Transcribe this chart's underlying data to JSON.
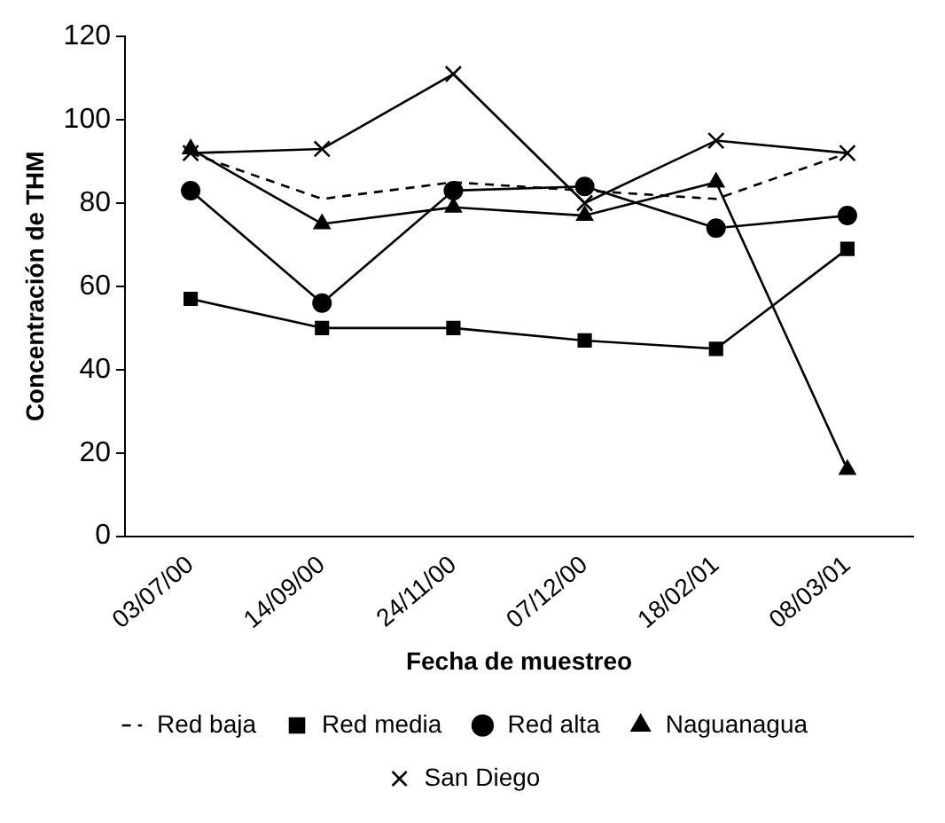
{
  "chart_data": {
    "type": "line",
    "xlabel": "Fecha de muestreo",
    "ylabel": "Concentración de THM",
    "categories": [
      "03/07/00",
      "14/09/00",
      "24/11/00",
      "07/12/00",
      "18/02/01",
      "08/03/01"
    ],
    "ylim": [
      0,
      120
    ],
    "yticks": [
      0,
      20,
      40,
      60,
      80,
      100,
      120
    ],
    "grid": false,
    "legend": "bottom",
    "series": [
      {
        "name": "Red baja",
        "color": "#000000",
        "line_style": "dashed",
        "marker": "none",
        "values": [
          92,
          81,
          85,
          83,
          81,
          92
        ]
      },
      {
        "name": "Red media",
        "color": "#000000",
        "line_style": "solid",
        "marker": "square",
        "values": [
          57,
          50,
          50,
          47,
          45,
          69
        ]
      },
      {
        "name": "Red alta",
        "color": "#000000",
        "line_style": "solid",
        "marker": "circle",
        "values": [
          83,
          56,
          83,
          84,
          74,
          77
        ]
      },
      {
        "name": "Naguanagua",
        "color": "#000000",
        "line_style": "solid",
        "marker": "triangle",
        "values": [
          93,
          75,
          79,
          77,
          85,
          16
        ]
      },
      {
        "name": "San Diego",
        "color": "#000000",
        "line_style": "solid",
        "marker": "cross",
        "values": [
          92,
          93,
          111,
          80,
          95,
          92
        ]
      }
    ]
  }
}
